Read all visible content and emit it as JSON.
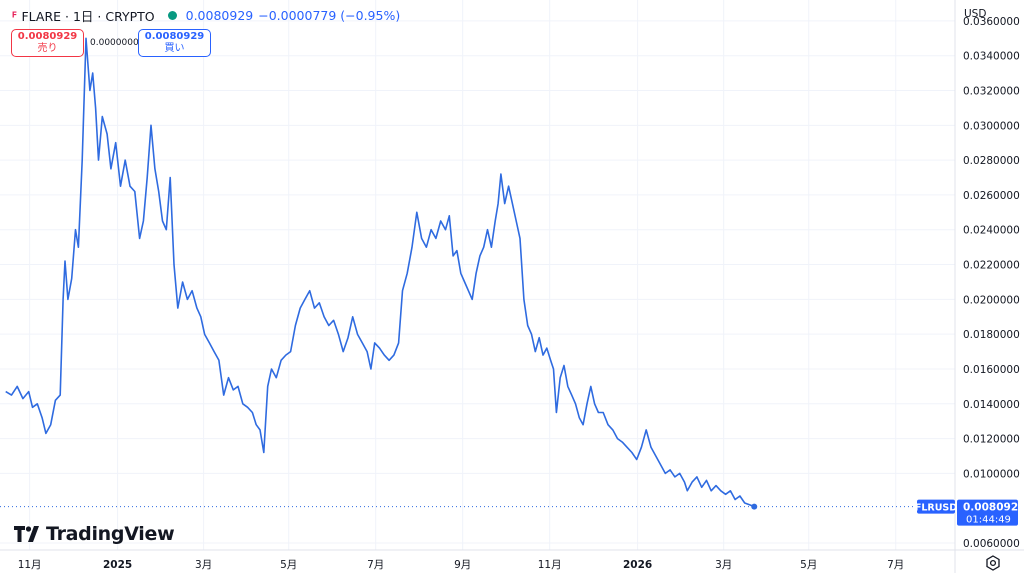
{
  "header": {
    "symbol_label": "FLARE · 1日 · CRYPTO",
    "last_price": "0.0080929",
    "change": "−0.0000779 (−0.95%)"
  },
  "trade": {
    "sell_price": "0.0080929",
    "sell_label": "売り",
    "spread": "0.0000000",
    "buy_price": "0.0080929",
    "buy_label": "買い"
  },
  "axis": {
    "currency": "USD",
    "price_tag_symbol": "FLRUSD",
    "price_tag_value": "0.0080929",
    "countdown": "01:44:49"
  },
  "branding": {
    "name": "TradingView"
  },
  "colors": {
    "line": "#2f6be0",
    "grid": "#f0f3fa",
    "tag_bg": "#2962ff",
    "sell": "#f23645",
    "buy": "#2962ff"
  },
  "chart_data": {
    "type": "line",
    "title": "FLARE · 1日 · CRYPTO",
    "xlabel": "",
    "ylabel": "USD",
    "ylim": [
      0.0056,
      0.0372
    ],
    "y_ticks": [
      0.006,
      0.01,
      0.012,
      0.014,
      0.016,
      0.018,
      0.02,
      0.022,
      0.024,
      0.026,
      0.028,
      0.03,
      0.032,
      0.034,
      0.036
    ],
    "y_tick_labels": [
      "0.0060000",
      "0.0100000",
      "0.0120000",
      "0.0140000",
      "0.0160000",
      "0.0180000",
      "0.0200000",
      "0.0220000",
      "0.0240000",
      "0.0260000",
      "0.0280000",
      "0.0300000",
      "0.0320000",
      "0.0340000",
      "0.0360000"
    ],
    "x_ticks": [
      {
        "label": "11月",
        "day": 25
      },
      {
        "label": "2025",
        "day": 117,
        "bold": true
      },
      {
        "label": "3月",
        "day": 207
      },
      {
        "label": "5月",
        "day": 296
      },
      {
        "label": "7月",
        "day": 387
      },
      {
        "label": "9月",
        "day": 478
      },
      {
        "label": "11月",
        "day": 569
      },
      {
        "label": "2026",
        "day": 661,
        "bold": true
      },
      {
        "label": "3月",
        "day": 751
      },
      {
        "label": "5月",
        "day": 840
      },
      {
        "label": "7月",
        "day": 931
      }
    ],
    "x_day_range": [
      -6,
      993
    ],
    "series": [
      {
        "name": "FLRUSD",
        "points": [
          [
            0,
            0.0147
          ],
          [
            6,
            0.0145
          ],
          [
            12,
            0.015
          ],
          [
            18,
            0.0143
          ],
          [
            24,
            0.0147
          ],
          [
            28,
            0.0138
          ],
          [
            33,
            0.014
          ],
          [
            38,
            0.0132
          ],
          [
            42,
            0.0123
          ],
          [
            47,
            0.0128
          ],
          [
            52,
            0.0142
          ],
          [
            57,
            0.0145
          ],
          [
            60,
            0.02
          ],
          [
            62,
            0.0222
          ],
          [
            65,
            0.02
          ],
          [
            69,
            0.0212
          ],
          [
            73,
            0.024
          ],
          [
            76,
            0.023
          ],
          [
            80,
            0.028
          ],
          [
            84,
            0.035
          ],
          [
            88,
            0.032
          ],
          [
            91,
            0.033
          ],
          [
            94,
            0.031
          ],
          [
            97,
            0.028
          ],
          [
            101,
            0.0305
          ],
          [
            106,
            0.0295
          ],
          [
            110,
            0.0275
          ],
          [
            115,
            0.029
          ],
          [
            120,
            0.0265
          ],
          [
            125,
            0.028
          ],
          [
            130,
            0.0265
          ],
          [
            135,
            0.0262
          ],
          [
            140,
            0.0235
          ],
          [
            144,
            0.0245
          ],
          [
            148,
            0.027
          ],
          [
            152,
            0.03
          ],
          [
            156,
            0.0275
          ],
          [
            160,
            0.0262
          ],
          [
            164,
            0.0245
          ],
          [
            168,
            0.024
          ],
          [
            172,
            0.027
          ],
          [
            176,
            0.022
          ],
          [
            180,
            0.0195
          ],
          [
            185,
            0.021
          ],
          [
            190,
            0.02
          ],
          [
            195,
            0.0205
          ],
          [
            200,
            0.0195
          ],
          [
            204,
            0.019
          ],
          [
            208,
            0.018
          ],
          [
            213,
            0.0175
          ],
          [
            218,
            0.017
          ],
          [
            223,
            0.0165
          ],
          [
            228,
            0.0145
          ],
          [
            233,
            0.0155
          ],
          [
            238,
            0.0148
          ],
          [
            243,
            0.015
          ],
          [
            248,
            0.014
          ],
          [
            253,
            0.0138
          ],
          [
            258,
            0.0135
          ],
          [
            262,
            0.0128
          ],
          [
            266,
            0.0125
          ],
          [
            270,
            0.0112
          ],
          [
            274,
            0.015
          ],
          [
            278,
            0.016
          ],
          [
            283,
            0.0155
          ],
          [
            288,
            0.0165
          ],
          [
            293,
            0.0168
          ],
          [
            298,
            0.017
          ],
          [
            303,
            0.0185
          ],
          [
            308,
            0.0195
          ],
          [
            313,
            0.02
          ],
          [
            318,
            0.0205
          ],
          [
            323,
            0.0195
          ],
          [
            328,
            0.0198
          ],
          [
            333,
            0.019
          ],
          [
            338,
            0.0185
          ],
          [
            343,
            0.0188
          ],
          [
            348,
            0.018
          ],
          [
            353,
            0.017
          ],
          [
            358,
            0.0178
          ],
          [
            363,
            0.019
          ],
          [
            368,
            0.018
          ],
          [
            373,
            0.0175
          ],
          [
            378,
            0.017
          ],
          [
            382,
            0.016
          ],
          [
            386,
            0.0175
          ],
          [
            391,
            0.0172
          ],
          [
            396,
            0.0168
          ],
          [
            401,
            0.0165
          ],
          [
            406,
            0.0168
          ],
          [
            411,
            0.0175
          ],
          [
            415,
            0.0205
          ],
          [
            420,
            0.0215
          ],
          [
            425,
            0.023
          ],
          [
            430,
            0.025
          ],
          [
            435,
            0.0235
          ],
          [
            440,
            0.023
          ],
          [
            445,
            0.024
          ],
          [
            450,
            0.0235
          ],
          [
            455,
            0.0245
          ],
          [
            460,
            0.024
          ],
          [
            464,
            0.0248
          ],
          [
            468,
            0.0225
          ],
          [
            472,
            0.0228
          ],
          [
            476,
            0.0215
          ],
          [
            480,
            0.021
          ],
          [
            484,
            0.0205
          ],
          [
            488,
            0.02
          ],
          [
            492,
            0.0215
          ],
          [
            496,
            0.0225
          ],
          [
            500,
            0.023
          ],
          [
            504,
            0.024
          ],
          [
            508,
            0.023
          ],
          [
            512,
            0.0245
          ],
          [
            515,
            0.0255
          ],
          [
            518,
            0.0272
          ],
          [
            522,
            0.0255
          ],
          [
            526,
            0.0265
          ],
          [
            530,
            0.0255
          ],
          [
            534,
            0.0245
          ],
          [
            538,
            0.0235
          ],
          [
            542,
            0.02
          ],
          [
            546,
            0.0185
          ],
          [
            550,
            0.018
          ],
          [
            554,
            0.017
          ],
          [
            558,
            0.0178
          ],
          [
            562,
            0.0168
          ],
          [
            566,
            0.0172
          ],
          [
            570,
            0.0165
          ],
          [
            573,
            0.016
          ],
          [
            576,
            0.0135
          ],
          [
            580,
            0.0155
          ],
          [
            584,
            0.0162
          ],
          [
            588,
            0.015
          ],
          [
            592,
            0.0145
          ],
          [
            596,
            0.014
          ],
          [
            600,
            0.0132
          ],
          [
            604,
            0.0128
          ],
          [
            608,
            0.014
          ],
          [
            612,
            0.015
          ],
          [
            616,
            0.014
          ],
          [
            620,
            0.0135
          ],
          [
            625,
            0.0135
          ],
          [
            630,
            0.0128
          ],
          [
            635,
            0.0125
          ],
          [
            640,
            0.012
          ],
          [
            645,
            0.0118
          ],
          [
            650,
            0.0115
          ],
          [
            655,
            0.0112
          ],
          [
            660,
            0.0108
          ],
          [
            665,
            0.0115
          ],
          [
            670,
            0.0125
          ],
          [
            675,
            0.0115
          ],
          [
            680,
            0.011
          ],
          [
            685,
            0.0105
          ],
          [
            690,
            0.01
          ],
          [
            695,
            0.0102
          ],
          [
            700,
            0.0098
          ],
          [
            705,
            0.01
          ],
          [
            710,
            0.0095
          ],
          [
            713,
            0.009
          ],
          [
            718,
            0.0095
          ],
          [
            723,
            0.0098
          ],
          [
            728,
            0.0092
          ],
          [
            733,
            0.0096
          ],
          [
            738,
            0.009
          ],
          [
            743,
            0.0093
          ],
          [
            748,
            0.009
          ],
          [
            753,
            0.0088
          ],
          [
            758,
            0.009
          ],
          [
            763,
            0.0085
          ],
          [
            768,
            0.0087
          ],
          [
            773,
            0.0083
          ],
          [
            778,
            0.0082
          ],
          [
            783,
            0.0080929
          ]
        ]
      }
    ]
  }
}
